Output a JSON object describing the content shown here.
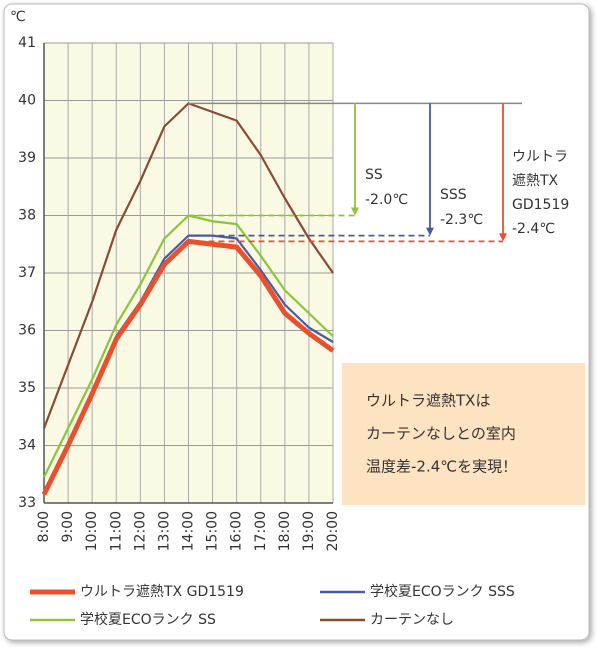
{
  "chart_data": {
    "type": "line",
    "unit_label": "℃",
    "categories": [
      "8:00",
      "9:00",
      "10:00",
      "11:00",
      "12:00",
      "13:00",
      "14:00",
      "15:00",
      "16:00",
      "17:00",
      "18:00",
      "19:00",
      "20:00"
    ],
    "ylim": [
      33,
      41
    ],
    "yticks": [
      33,
      34,
      35,
      36,
      37,
      38,
      39,
      40,
      41
    ],
    "grid": true,
    "series": [
      {
        "name": "ウルトラ遮熱TX GD1519",
        "color": "#e8502f",
        "values": [
          33.15,
          34.0,
          34.9,
          35.85,
          36.45,
          37.15,
          37.55,
          37.5,
          37.45,
          36.95,
          36.3,
          35.95,
          35.65
        ]
      },
      {
        "name": "学校夏ECOランク SSS",
        "color": "#4a5aa0",
        "values": [
          33.2,
          34.05,
          34.95,
          35.9,
          36.5,
          37.25,
          37.65,
          37.65,
          37.6,
          37.05,
          36.45,
          36.05,
          35.8
        ]
      },
      {
        "name": "学校夏ECOランク SS",
        "color": "#8cc43c",
        "values": [
          33.45,
          34.3,
          35.15,
          36.1,
          36.8,
          37.6,
          38.0,
          37.9,
          37.85,
          37.3,
          36.7,
          36.3,
          35.9
        ]
      },
      {
        "name": "カーテンなし",
        "color": "#8b4a32",
        "values": [
          34.3,
          35.4,
          36.5,
          37.75,
          38.6,
          39.55,
          39.95,
          39.8,
          39.65,
          39.05,
          38.3,
          37.6,
          37.0
        ]
      }
    ],
    "annotations": [
      {
        "series": 2,
        "lines": [
          "SS",
          "-2.0℃"
        ]
      },
      {
        "series": 1,
        "lines": [
          "SSS",
          "-2.3℃"
        ]
      },
      {
        "series": 0,
        "lines": [
          "ウルトラ",
          "遮熱TX",
          "GD1519",
          "-2.4℃"
        ]
      }
    ],
    "callout": [
      "ウルトラ遮熱TXは",
      "カーテンなしとの室内",
      "温度差-2.4℃を実現！"
    ]
  }
}
